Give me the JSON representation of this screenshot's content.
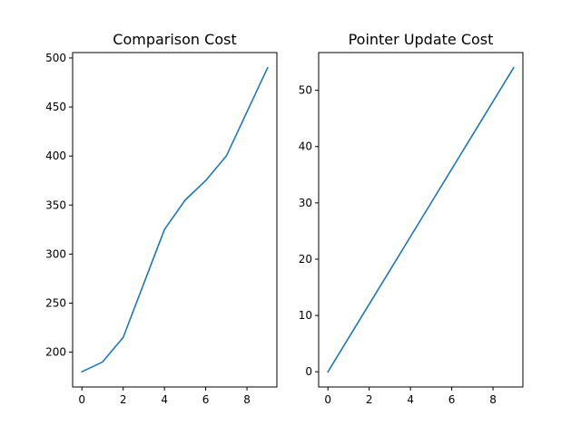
{
  "chart_data": [
    {
      "type": "line",
      "title": "Comparison Cost",
      "xlabel": "",
      "ylabel": "",
      "xlim": [
        -0.45,
        9.45
      ],
      "ylim": [
        164.5,
        505.5
      ],
      "xticks": [
        0,
        2,
        4,
        6,
        8
      ],
      "yticks": [
        200,
        250,
        300,
        350,
        400,
        450,
        500
      ],
      "grid": false,
      "series": [
        {
          "color": "#1f77b4",
          "x": [
            0,
            1,
            2,
            3,
            4,
            5,
            6,
            7,
            8,
            9
          ],
          "y": [
            180,
            190,
            215,
            270,
            325,
            355,
            375,
            400,
            445,
            490
          ]
        }
      ]
    },
    {
      "type": "line",
      "title": "Pointer Update Cost",
      "xlabel": "",
      "ylabel": "",
      "xlim": [
        -0.45,
        9.45
      ],
      "ylim": [
        -2.7,
        56.7
      ],
      "xticks": [
        0,
        2,
        4,
        6,
        8
      ],
      "yticks": [
        0,
        10,
        20,
        30,
        40,
        50
      ],
      "grid": false,
      "series": [
        {
          "color": "#1f77b4",
          "x": [
            0,
            1,
            2,
            3,
            4,
            5,
            6,
            7,
            8,
            9
          ],
          "y": [
            0,
            6,
            12,
            18,
            24,
            30,
            36,
            42,
            48,
            54
          ]
        }
      ]
    }
  ]
}
